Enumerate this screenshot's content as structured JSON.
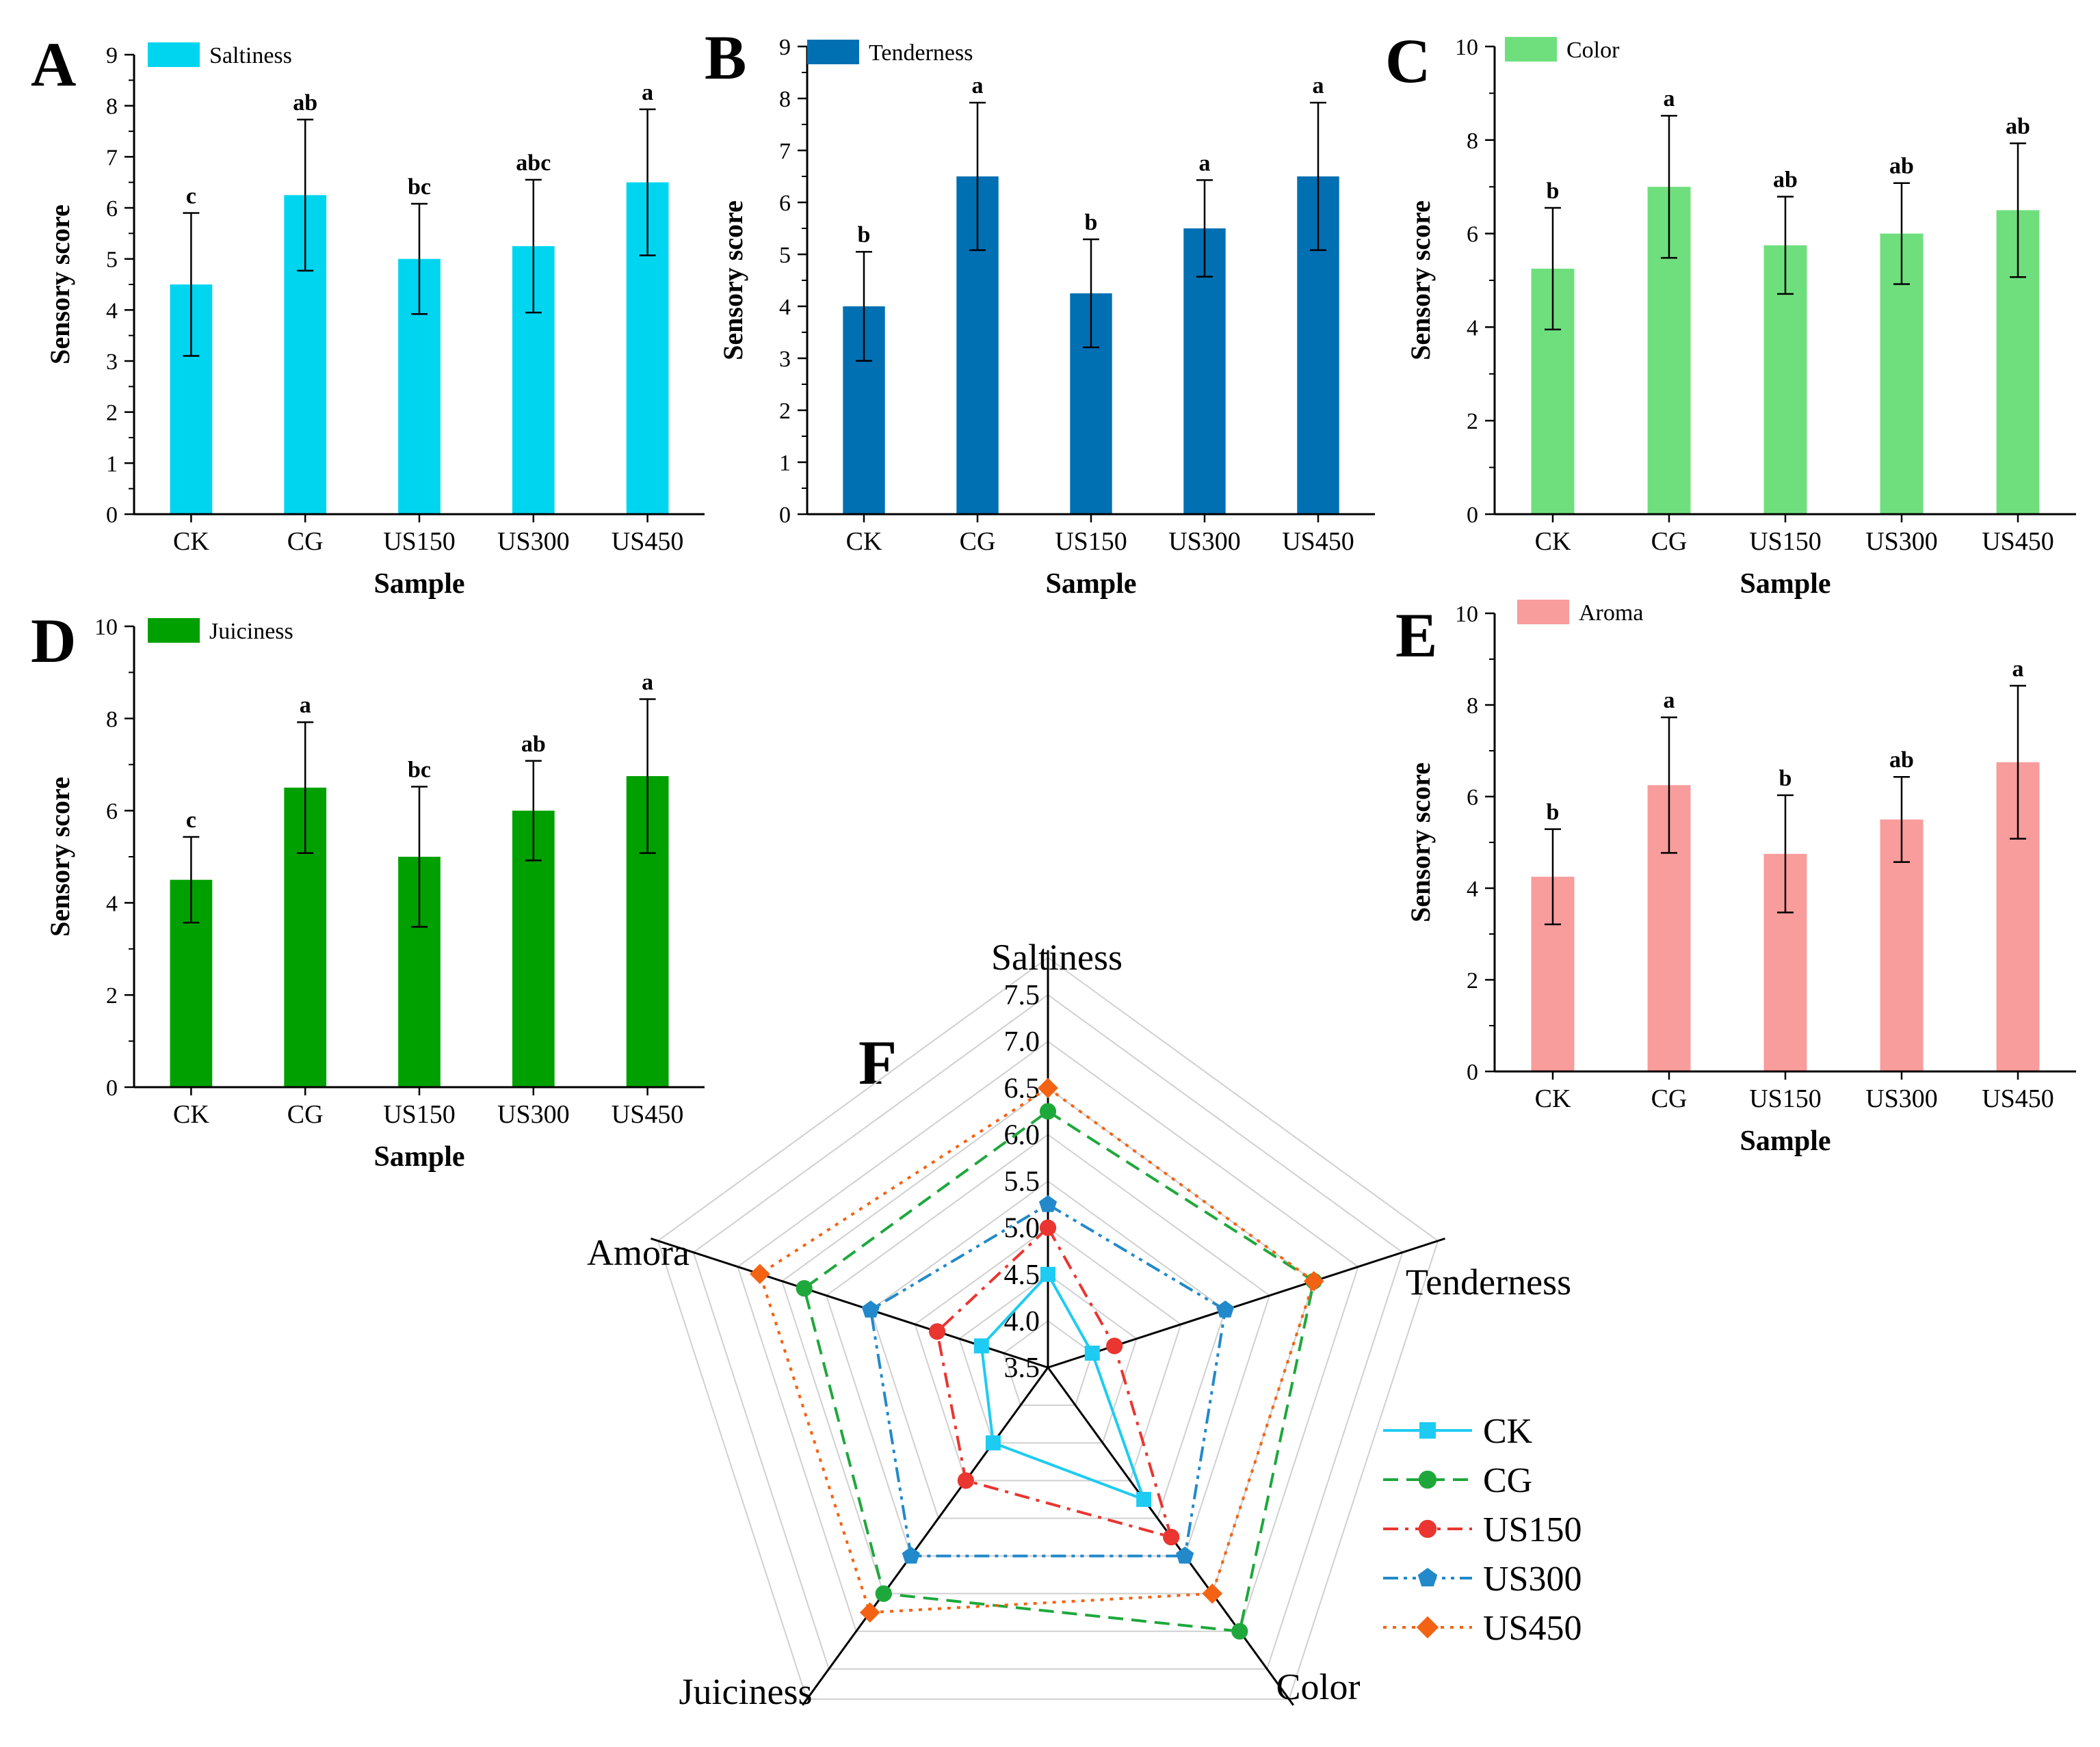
{
  "panels": [
    {
      "id": "A",
      "letter": "A",
      "legend": "Saltiness",
      "color": "#00D5F0",
      "ylabel": "Sensory score",
      "xlabel": "Sample",
      "categories": [
        "CK",
        "CG",
        "US150",
        "US300",
        "US450"
      ],
      "ylim": [
        0,
        9
      ],
      "yticks": [
        0,
        1,
        2,
        3,
        4,
        5,
        6,
        7,
        8,
        9
      ],
      "values": [
        4.5,
        6.25,
        5.0,
        5.25,
        6.5
      ],
      "errors": [
        1.4,
        1.48,
        1.08,
        1.3,
        1.43
      ],
      "letters": [
        "c",
        "ab",
        "bc",
        "abc",
        "a"
      ]
    },
    {
      "id": "B",
      "letter": "B",
      "legend": "Tenderness",
      "color": "#0070B3",
      "ylabel": "Sensory score",
      "xlabel": "Sample",
      "categories": [
        "CK",
        "CG",
        "US150",
        "US300",
        "US450"
      ],
      "ylim": [
        0,
        9
      ],
      "yticks": [
        0,
        1,
        2,
        3,
        4,
        5,
        6,
        7,
        8,
        9
      ],
      "values": [
        4.0,
        6.5,
        4.25,
        5.5,
        6.5
      ],
      "errors": [
        1.05,
        1.42,
        1.04,
        0.93,
        1.42
      ],
      "letters": [
        "b",
        "a",
        "b",
        "a",
        "a"
      ]
    },
    {
      "id": "C",
      "letter": "C",
      "legend": "Color",
      "color": "#6FDF7E",
      "ylabel": "Sensory score",
      "xlabel": "Sample",
      "categories": [
        "CK",
        "CG",
        "US150",
        "US300",
        "US450"
      ],
      "ylim": [
        0,
        10
      ],
      "yticks": [
        0,
        2,
        4,
        6,
        8,
        10
      ],
      "values": [
        5.25,
        7.0,
        5.75,
        6.0,
        6.5
      ],
      "errors": [
        1.3,
        1.52,
        1.04,
        1.08,
        1.43
      ],
      "letters": [
        "b",
        "a",
        "ab",
        "ab",
        "ab"
      ]
    },
    {
      "id": "D",
      "letter": "D",
      "legend": "Juiciness",
      "color": "#00A000",
      "ylabel": "Sensory score",
      "xlabel": "Sample",
      "categories": [
        "CK",
        "CG",
        "US150",
        "US300",
        "US450"
      ],
      "ylim": [
        0,
        10
      ],
      "yticks": [
        0,
        2,
        4,
        6,
        8,
        10
      ],
      "values": [
        4.5,
        6.5,
        5.0,
        6.0,
        6.75
      ],
      "errors": [
        0.93,
        1.42,
        1.52,
        1.08,
        1.67
      ],
      "letters": [
        "c",
        "a",
        "bc",
        "ab",
        "a"
      ]
    },
    {
      "id": "E",
      "letter": "E",
      "legend": "Aroma",
      "color": "#F89C9C",
      "ylabel": "Sensory score",
      "xlabel": "Sample",
      "categories": [
        "CK",
        "CG",
        "US150",
        "US300",
        "US450"
      ],
      "ylim": [
        0,
        10
      ],
      "yticks": [
        0,
        2,
        4,
        6,
        8,
        10
      ],
      "values": [
        4.25,
        6.25,
        4.75,
        5.5,
        6.75
      ],
      "errors": [
        1.04,
        1.48,
        1.28,
        0.93,
        1.67
      ],
      "letters": [
        "b",
        "a",
        "b",
        "ab",
        "a"
      ]
    }
  ],
  "radar": {
    "letter": "F",
    "axes": [
      "Saltiness",
      "Tenderness",
      "Color",
      "Juiciness",
      "Amora"
    ],
    "rmin": 3.5,
    "rmax": 7.5,
    "ticks": [
      "3.5",
      "4.0",
      "4.5",
      "5.0",
      "5.5",
      "6.0",
      "6.5",
      "7.0",
      "7.5"
    ],
    "series": [
      {
        "name": "CK",
        "color": "#1ECBF2",
        "dash": "solid",
        "marker": "square",
        "values": [
          4.5,
          4.0,
          5.25,
          4.5,
          4.25
        ]
      },
      {
        "name": "CG",
        "color": "#1EA83C",
        "dash": "dashed",
        "marker": "circle",
        "values": [
          6.25,
          6.5,
          7.0,
          6.5,
          6.25
        ]
      },
      {
        "name": "US150",
        "color": "#EA3530",
        "dash": "dashdot",
        "marker": "circle",
        "values": [
          5.0,
          4.25,
          5.75,
          5.0,
          4.75
        ]
      },
      {
        "name": "US300",
        "color": "#2289CA",
        "dash": "dashdotdot",
        "marker": "pentagon",
        "values": [
          5.25,
          5.5,
          6.0,
          6.0,
          5.5
        ]
      },
      {
        "name": "US450",
        "color": "#F46313",
        "dash": "dotted",
        "marker": "diamond",
        "values": [
          6.5,
          6.5,
          6.5,
          6.75,
          6.75
        ]
      }
    ]
  }
}
